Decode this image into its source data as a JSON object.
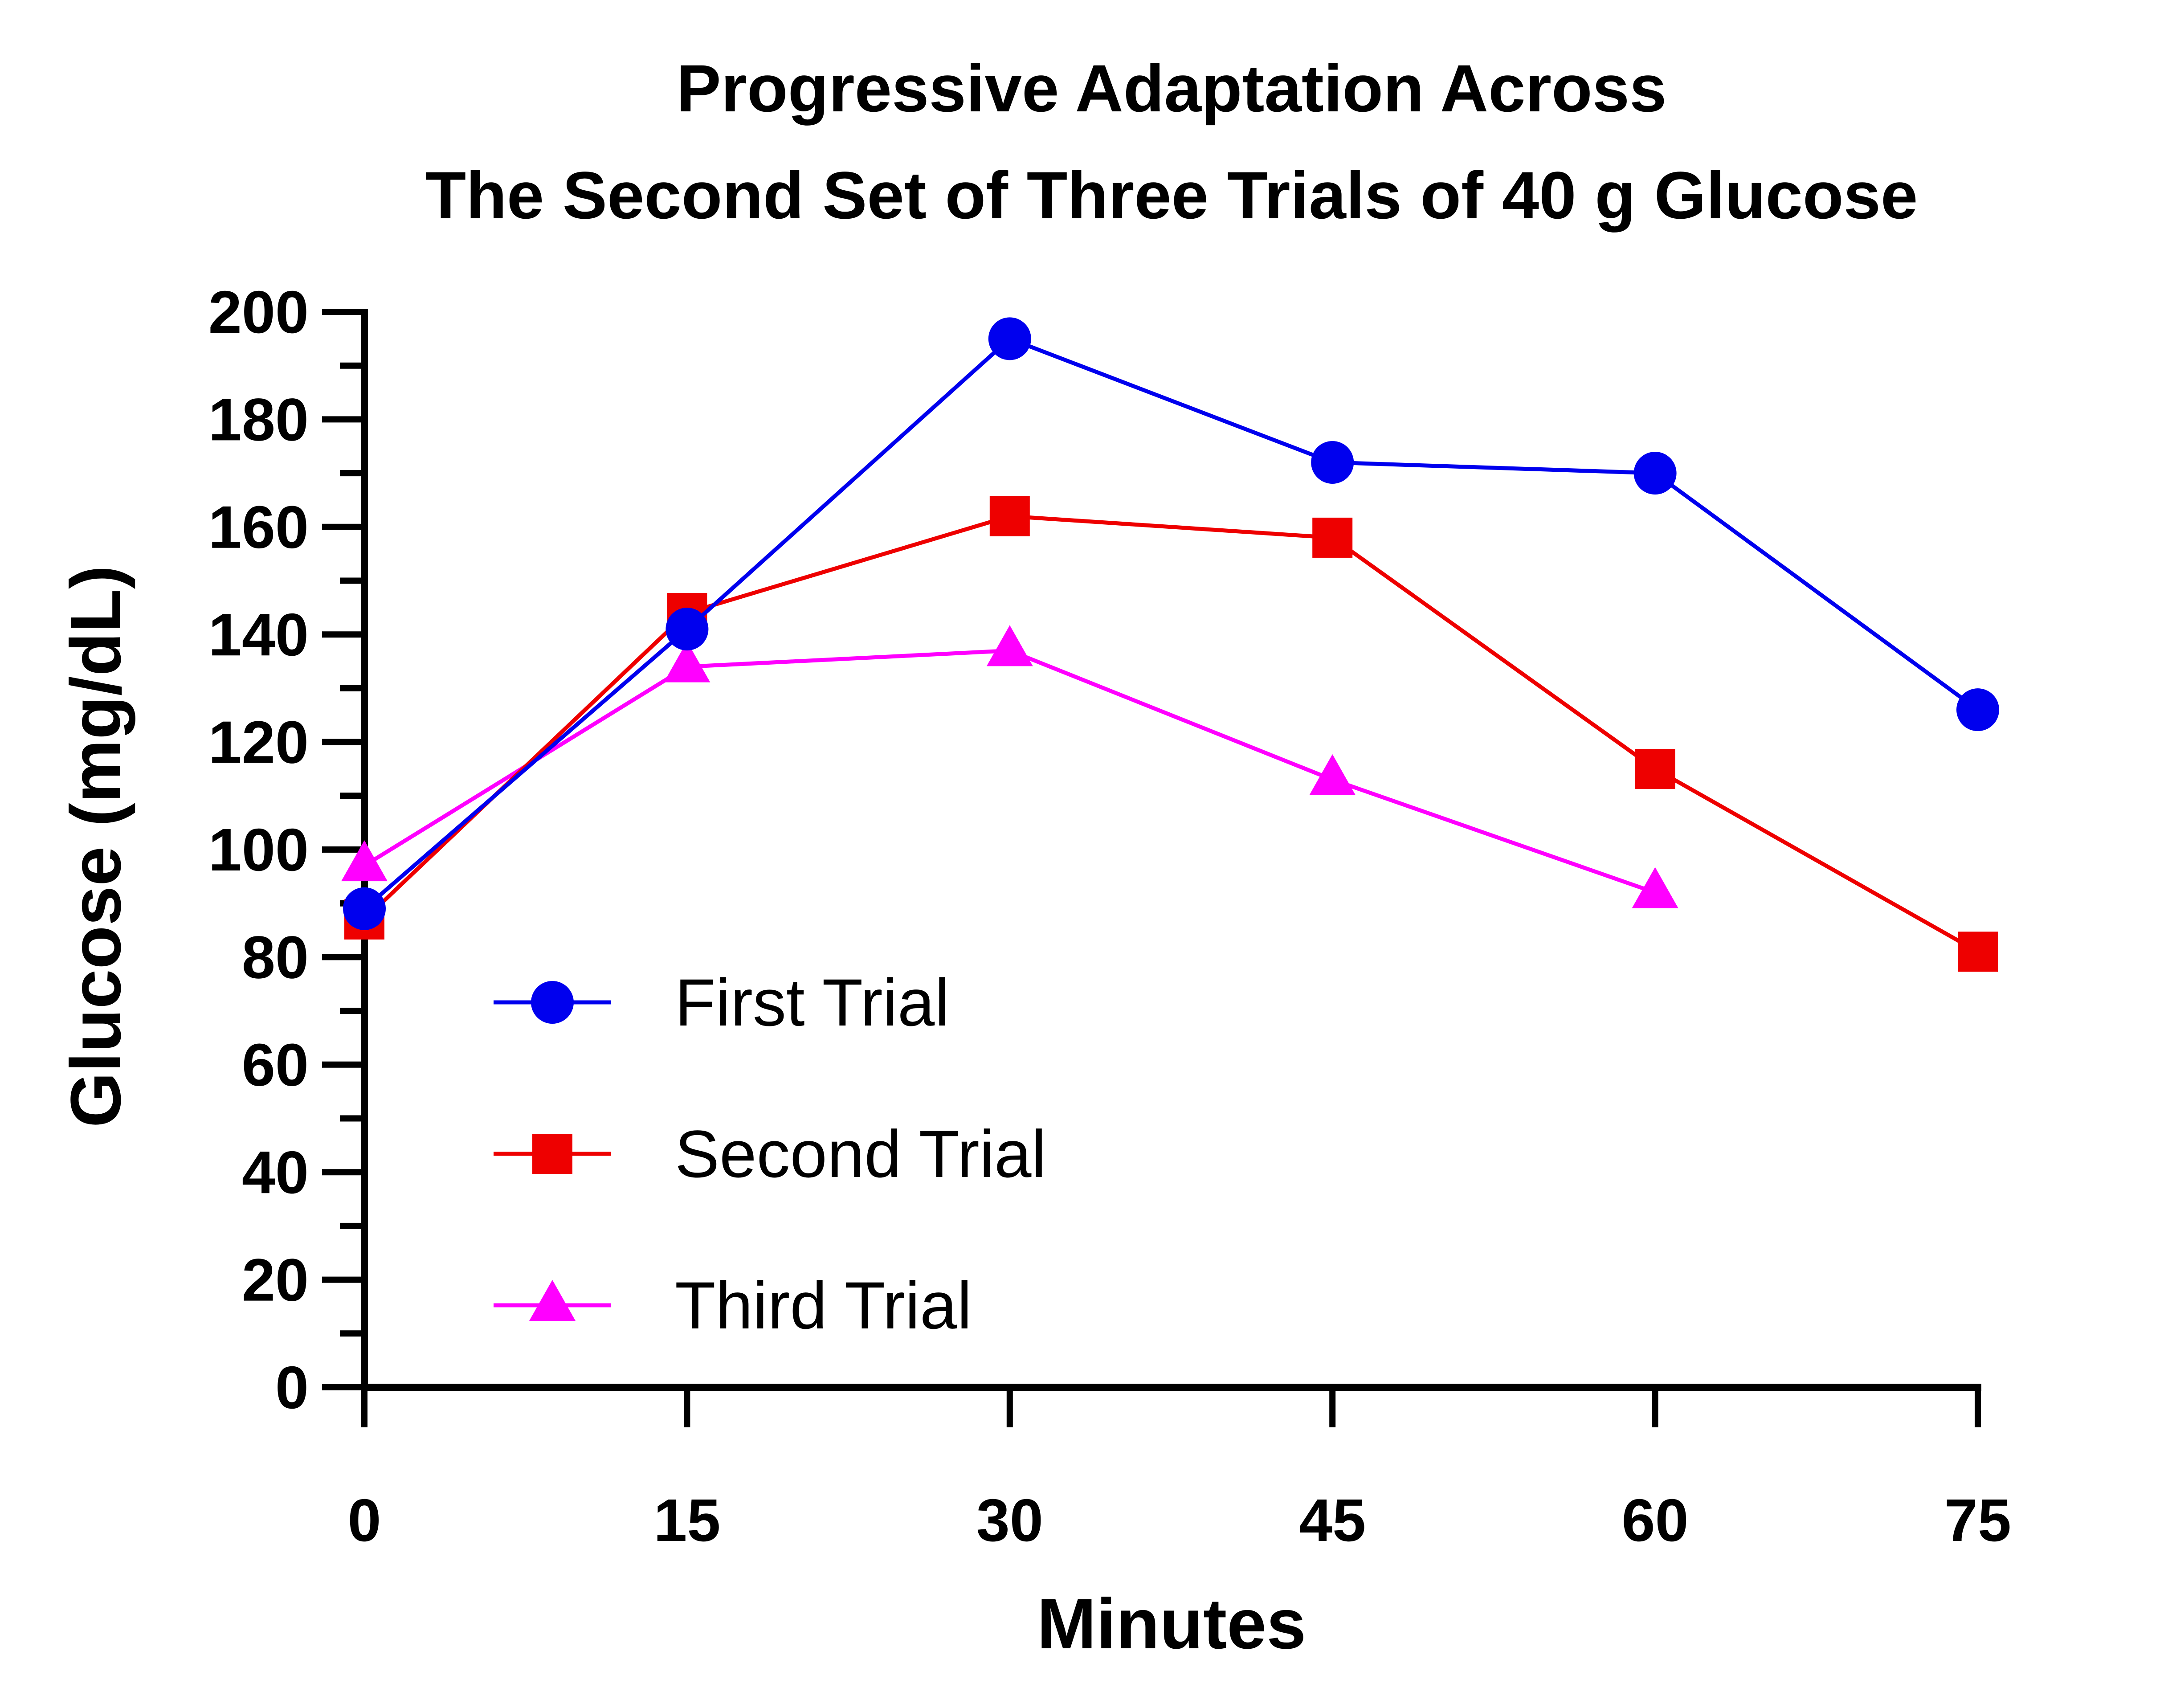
{
  "chart_data": {
    "type": "line",
    "title_line1": "Progressive Adaptation Across",
    "title_line2": "The Second Set of Three Trials of 40 g Glucose",
    "xlabel": "Minutes",
    "ylabel": "Glucose (mg/dL)",
    "xlim": [
      0,
      75
    ],
    "ylim": [
      0,
      200
    ],
    "x_ticks": [
      0,
      15,
      30,
      45,
      60,
      75
    ],
    "y_ticks": [
      0,
      20,
      40,
      60,
      80,
      100,
      120,
      140,
      160,
      180,
      200
    ],
    "grid": false,
    "legend_position": "lower-left",
    "series": [
      {
        "name": "First Trial",
        "color": "#0000EE",
        "marker": "circle",
        "x": [
          0,
          15,
          30,
          45,
          60,
          75
        ],
        "values": [
          89,
          141,
          195,
          172,
          170,
          126
        ]
      },
      {
        "name": "Second Trial",
        "color": "#EE0000",
        "marker": "square",
        "x": [
          0,
          15,
          30,
          45,
          60,
          75
        ],
        "values": [
          87,
          144,
          162,
          158,
          115,
          81
        ]
      },
      {
        "name": "Third Trial",
        "color": "#FF00FF",
        "marker": "triangle",
        "x": [
          0,
          15,
          30,
          45,
          60
        ],
        "values": [
          97,
          134,
          137,
          113,
          92
        ]
      }
    ]
  }
}
